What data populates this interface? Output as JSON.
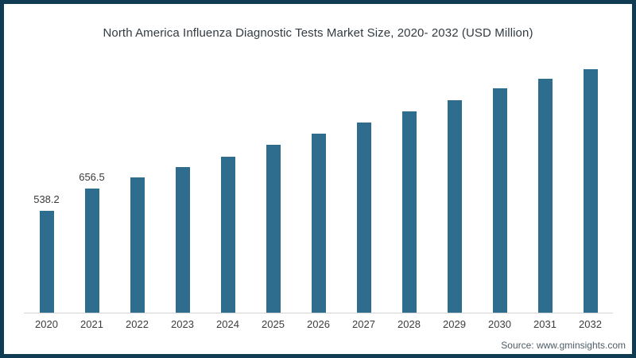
{
  "title": "North America Influenza Diagnostic Tests Market Size, 2020- 2032 (USD Million)",
  "source": "Source: www.gminsights.com",
  "colors": {
    "frame_border": "#0f3c52",
    "bar": "#2f6d8f",
    "axis_line": "#d4d4d4",
    "title_text": "#333b42",
    "tick_text": "#3d3d3d",
    "source_text": "#4e5d68",
    "background": "#ffffff"
  },
  "chart_data": {
    "type": "bar",
    "title": "North America Influenza Diagnostic Tests Market Size, 2020- 2032 (USD Million)",
    "categories": [
      "2020",
      "2021",
      "2022",
      "2023",
      "2024",
      "2025",
      "2026",
      "2027",
      "2028",
      "2029",
      "2030",
      "2031",
      "2032"
    ],
    "values": [
      538.2,
      656.5,
      716,
      771,
      827,
      890,
      950,
      1009,
      1066,
      1128,
      1191,
      1242,
      1293
    ],
    "data_labels": [
      "538.2",
      "656.5",
      "",
      "",
      "",
      "",
      "",
      "",
      "",
      "",
      "",
      "",
      ""
    ],
    "xlabel": "",
    "ylabel": "",
    "ylim": [
      0,
      1400
    ],
    "value_axis_visible": false,
    "gridlines": false,
    "legend": "none",
    "bar_color": "#2f6d8f"
  }
}
